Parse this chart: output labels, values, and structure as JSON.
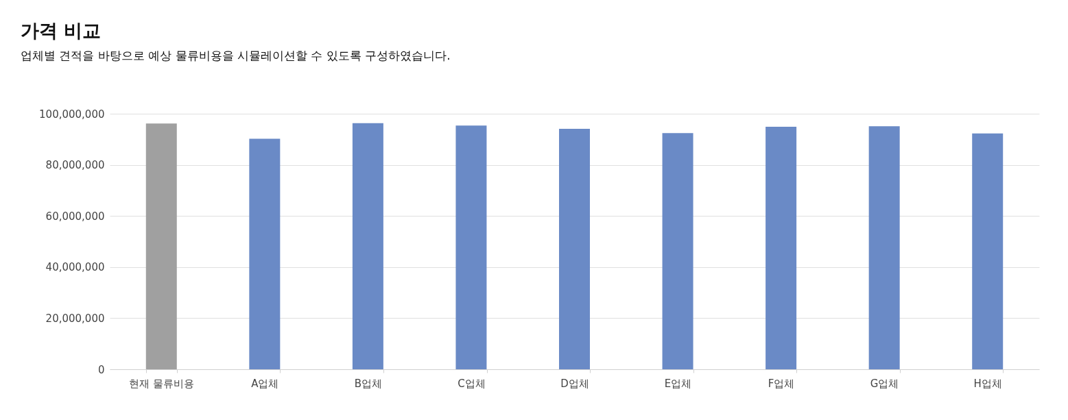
{
  "chart_data": {
    "type": "bar",
    "title": "가격 비교",
    "subtitle": "업체별 견적을 바탕으로 예상 물류비용을 시뮬레이션할 수 있도록 구성하였습니다.",
    "categories": [
      "현재 물류비용",
      "A업체",
      "B업체",
      "C업체",
      "D업체",
      "E업체",
      "F업체",
      "G업체",
      "H업체"
    ],
    "values": [
      96200000,
      90200000,
      96300000,
      95400000,
      94100000,
      92400000,
      94900000,
      95100000,
      92300000
    ],
    "colors": [
      "#a0a0a0",
      "#6a8ac6",
      "#6a8ac6",
      "#6a8ac6",
      "#6a8ac6",
      "#6a8ac6",
      "#6a8ac6",
      "#6a8ac6",
      "#6a8ac6"
    ],
    "ylim": [
      0,
      100000000
    ],
    "yticks": [
      {
        "value": 0,
        "label": "0"
      },
      {
        "value": 20000000,
        "label": "20,000,000"
      },
      {
        "value": 40000000,
        "label": "40,000,000"
      },
      {
        "value": 60000000,
        "label": "60,000,000"
      },
      {
        "value": 80000000,
        "label": "80,000,000"
      },
      {
        "value": 100000000,
        "label": "100,000,000"
      }
    ],
    "grid": "y"
  }
}
